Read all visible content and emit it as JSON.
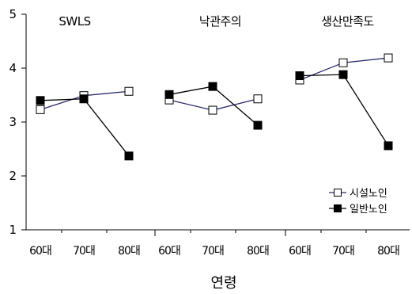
{
  "chart_data": {
    "type": "line",
    "xlabel": "연령",
    "ylabel": "",
    "ylim": [
      1,
      5
    ],
    "yticks": [
      "1",
      "2",
      "3",
      "4",
      "5"
    ],
    "categories": [
      "60대",
      "70대",
      "80대"
    ],
    "grid": false,
    "legend_position": "bottom-right",
    "legend": [
      {
        "name": "시설노인",
        "marker": "open-square",
        "line_color": "#2b2b6b"
      },
      {
        "name": "일반노인",
        "marker": "filled-square",
        "line_color": "#000000"
      }
    ],
    "panels": [
      {
        "title": "SWLS",
        "series": [
          {
            "name": "시설노인",
            "values": [
              3.23,
              3.49,
              3.57
            ]
          },
          {
            "name": "일반노인",
            "values": [
              3.4,
              3.43,
              2.37
            ]
          }
        ]
      },
      {
        "title": "낙관주의",
        "series": [
          {
            "name": "시설노인",
            "values": [
              3.41,
              3.22,
              3.43
            ]
          },
          {
            "name": "일반노인",
            "values": [
              3.51,
              3.66,
              2.94
            ]
          }
        ]
      },
      {
        "title": "생산만족도",
        "series": [
          {
            "name": "시설노인",
            "values": [
              3.78,
              4.1,
              4.19
            ]
          },
          {
            "name": "일반노인",
            "values": [
              3.86,
              3.88,
              2.56
            ]
          }
        ]
      }
    ]
  }
}
